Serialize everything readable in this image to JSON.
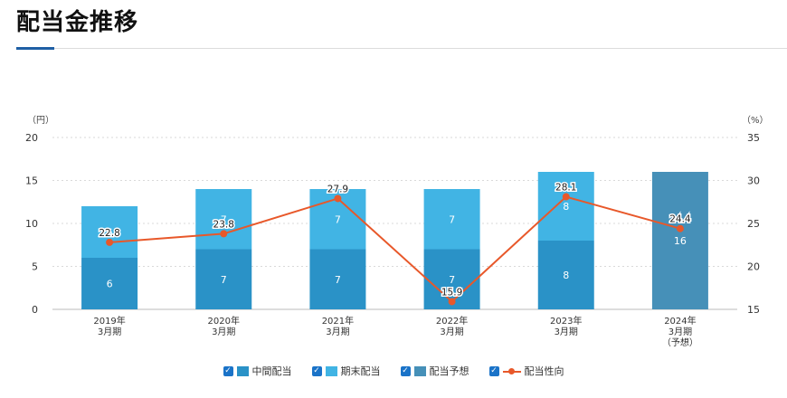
{
  "page": {
    "title": "配当金推移"
  },
  "colors": {
    "interim": "#2a92c7",
    "year_end": "#41b4e4",
    "forecast": "#4690b8",
    "payout_line": "#e8582a",
    "grid": "#d9d9d9"
  },
  "legend": [
    {
      "label": "中間配当",
      "series": "interim"
    },
    {
      "label": "期末配当",
      "series": "year_end"
    },
    {
      "label": "配当予想",
      "series": "forecast"
    },
    {
      "label": "配当性向",
      "series": "payout_line"
    }
  ],
  "chart_data": {
    "type": "bar",
    "categories": [
      [
        "2019年",
        "3月期"
      ],
      [
        "2020年",
        "3月期"
      ],
      [
        "2021年",
        "3月期"
      ],
      [
        "2022年",
        "3月期"
      ],
      [
        "2023年",
        "3月期"
      ],
      [
        "2024年",
        "3月期",
        "（予想）"
      ]
    ],
    "left_axis": {
      "unit": "（円）",
      "ylim": [
        0,
        20
      ],
      "ticks": [
        0,
        5,
        10,
        15,
        20
      ]
    },
    "right_axis": {
      "unit": "（%）",
      "ylim": [
        15,
        35
      ],
      "ticks": [
        15,
        20,
        25,
        30,
        35
      ]
    },
    "grid": true,
    "legend_position": "bottom",
    "series": [
      {
        "name": "中間配当",
        "type": "bar",
        "stack": true,
        "values": [
          6,
          7,
          7,
          7,
          8,
          null
        ]
      },
      {
        "name": "期末配当",
        "type": "bar",
        "stack": true,
        "values": [
          6,
          7,
          7,
          7,
          8,
          null
        ]
      },
      {
        "name": "配当予想",
        "type": "bar",
        "stack": true,
        "values": [
          null,
          null,
          null,
          null,
          null,
          16
        ]
      },
      {
        "name": "配当性向",
        "type": "line",
        "axis": "right",
        "values": [
          22.8,
          23.8,
          27.9,
          15.9,
          28.1,
          24.4
        ]
      }
    ]
  }
}
